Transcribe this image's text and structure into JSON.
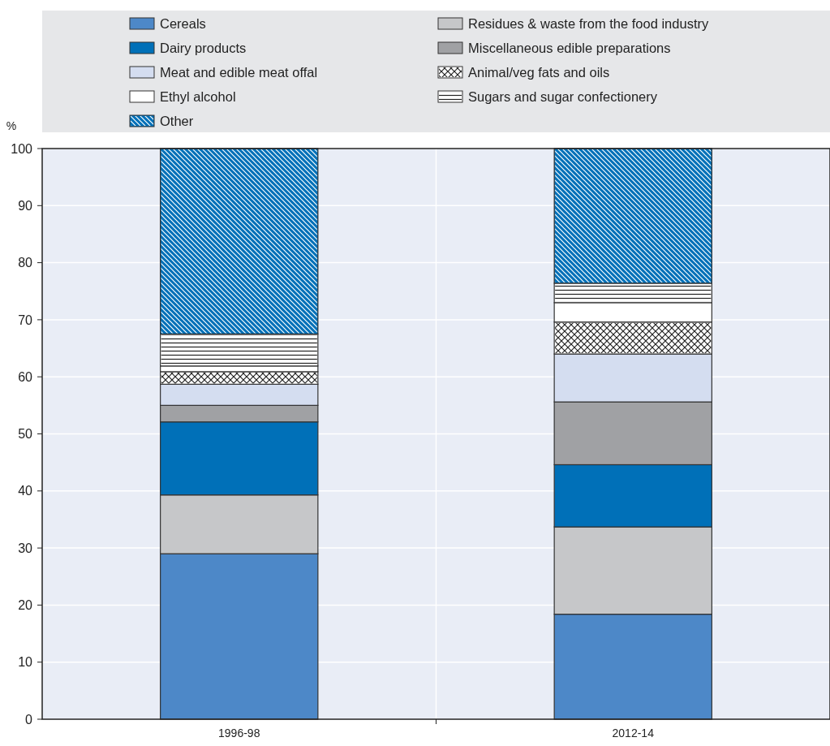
{
  "chart_data": {
    "type": "bar",
    "stacked": true,
    "ylabel": "%",
    "categories": [
      "1996-98",
      "2012-14"
    ],
    "ylim": [
      0,
      100
    ],
    "yticks": [
      0,
      10,
      20,
      30,
      40,
      50,
      60,
      70,
      80,
      90,
      100
    ],
    "grid": "y",
    "legend": "top",
    "series": [
      {
        "name": "Cereals",
        "color": "#4d88c8",
        "values": [
          29.0,
          18.4
        ]
      },
      {
        "name": "Residues & waste from the food industry",
        "color": "#c6c7c9",
        "values": [
          10.3,
          15.3
        ]
      },
      {
        "name": "Dairy products",
        "color": "#0070b8",
        "values": [
          12.8,
          10.9
        ]
      },
      {
        "name": "Miscellaneous edible preparations",
        "color": "#a0a1a4",
        "values": [
          2.9,
          11.0
        ]
      },
      {
        "name": "Meat and edible meat offal",
        "color": "#d4ddf0",
        "values": [
          3.7,
          8.4
        ]
      },
      {
        "name": "Animal/veg fats and oils",
        "color": "#ffffff",
        "values": [
          2.2,
          5.6
        ]
      },
      {
        "name": "Ethyl alcohol",
        "color": "#ffffff",
        "values": [
          1.0,
          3.4
        ]
      },
      {
        "name": "Sugars and sugar confectionery",
        "color": "#ffffff",
        "values": [
          5.6,
          3.4
        ]
      },
      {
        "name": "Other",
        "color": "#0070b8",
        "values": [
          32.5,
          23.6
        ]
      }
    ]
  }
}
